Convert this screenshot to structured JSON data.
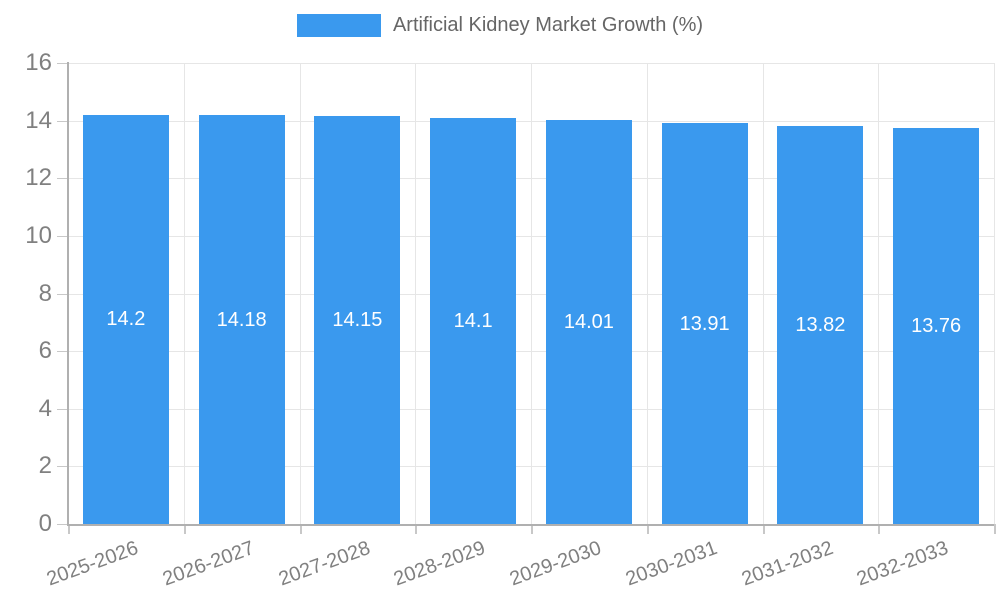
{
  "chart_data": {
    "type": "bar",
    "title": "Artificial Kidney Market Growth (%)",
    "categories": [
      "2025-2026",
      "2026-2027",
      "2027-2028",
      "2028-2029",
      "2029-2030",
      "2030-2031",
      "2031-2032",
      "2032-2033"
    ],
    "values": [
      14.2,
      14.18,
      14.15,
      14.1,
      14.01,
      13.91,
      13.82,
      13.76
    ],
    "xlabel": "",
    "ylabel": "",
    "ylim": [
      0,
      16
    ],
    "yticks": [
      0,
      2,
      4,
      6,
      8,
      10,
      12,
      14,
      16
    ],
    "grid": true,
    "legend_position": "top-center",
    "colors": {
      "bar": "#3a99ee",
      "value_label": "#ffffff",
      "axis_text": "#808080",
      "legend_text": "#666666",
      "grid": "#e6e6e6",
      "tick": "#c8c8c8",
      "axis_line": "#b0b0b0"
    }
  }
}
